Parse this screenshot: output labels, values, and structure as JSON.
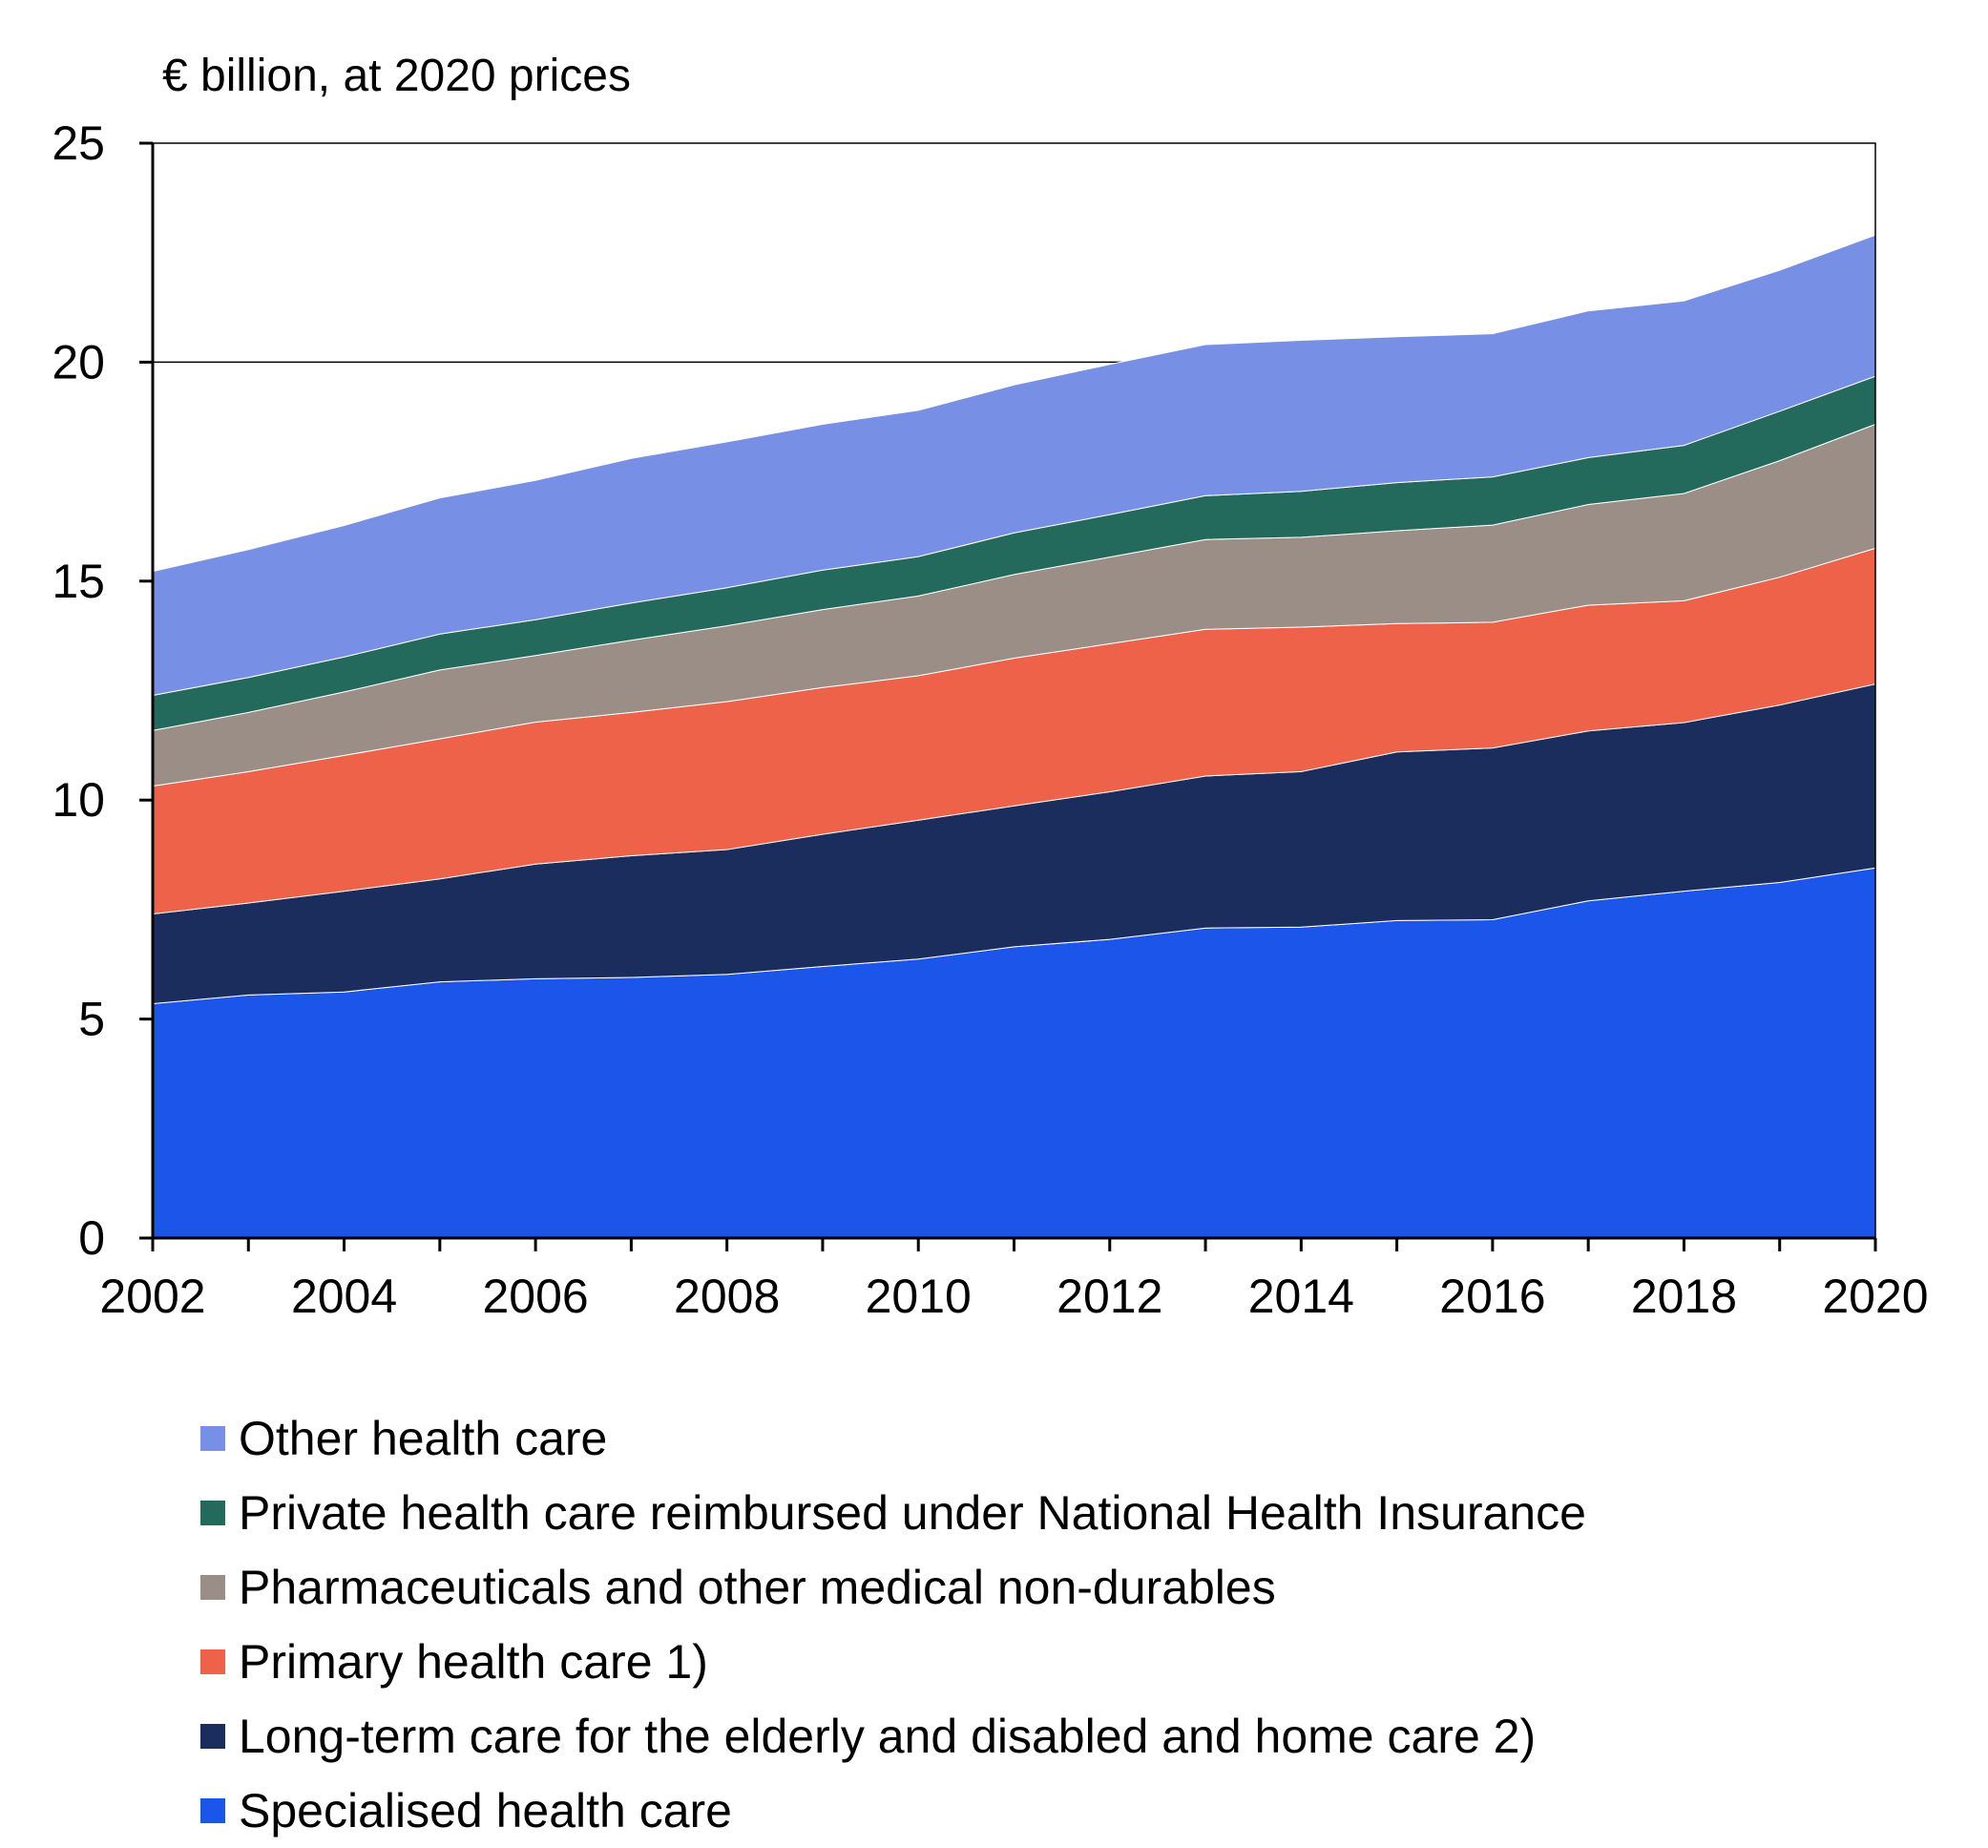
{
  "chart_data": {
    "type": "area",
    "stacked": true,
    "title": "",
    "ylabel": "€ billion, at 2020 prices",
    "xlabel": "",
    "ylim": [
      0,
      25
    ],
    "yticks": [
      0,
      5,
      10,
      15,
      20,
      25
    ],
    "xticks": [
      2002,
      2004,
      2006,
      2008,
      2010,
      2012,
      2014,
      2016,
      2018,
      2020
    ],
    "grid": "horizontal line at 20",
    "legend_position": "bottom",
    "x": [
      2002,
      2003,
      2004,
      2005,
      2006,
      2007,
      2008,
      2009,
      2010,
      2011,
      2012,
      2013,
      2014,
      2015,
      2016,
      2017,
      2018,
      2019,
      2020
    ],
    "series": [
      {
        "name": "Specialised health care",
        "color": "#1b55ea",
        "values": [
          5.35,
          5.55,
          5.62,
          5.85,
          5.92,
          5.95,
          6.02,
          6.2,
          6.37,
          6.65,
          6.82,
          7.08,
          7.1,
          7.25,
          7.27,
          7.7,
          7.92,
          8.12,
          8.45
        ]
      },
      {
        "name": "Long-term care for the elderly and disabled and home care 2)",
        "color": "#1b2d5c",
        "values": [
          2.05,
          2.1,
          2.3,
          2.35,
          2.62,
          2.78,
          2.85,
          3.02,
          3.17,
          3.22,
          3.37,
          3.47,
          3.55,
          3.85,
          3.92,
          3.88,
          3.85,
          4.05,
          4.2
        ]
      },
      {
        "name": "Primary health care 1)",
        "color": "#ef624a",
        "values": [
          2.92,
          3.0,
          3.1,
          3.2,
          3.24,
          3.27,
          3.38,
          3.35,
          3.3,
          3.37,
          3.38,
          3.35,
          3.3,
          2.93,
          2.87,
          2.87,
          2.78,
          2.92,
          3.1
        ]
      },
      {
        "name": "Pharmaceuticals and other medical non-durables",
        "color": "#9b8e86",
        "values": [
          1.27,
          1.35,
          1.45,
          1.57,
          1.52,
          1.65,
          1.73,
          1.78,
          1.82,
          1.91,
          1.98,
          2.05,
          2.05,
          2.12,
          2.22,
          2.3,
          2.45,
          2.66,
          2.83
        ]
      },
      {
        "name": "Private health care reimbursed under National Health Insurance",
        "color": "#236a5c",
        "values": [
          0.8,
          0.8,
          0.8,
          0.82,
          0.82,
          0.85,
          0.87,
          0.9,
          0.9,
          0.95,
          0.97,
          1.0,
          1.05,
          1.1,
          1.1,
          1.07,
          1.1,
          1.13,
          1.1
        ]
      },
      {
        "name": "Other health care",
        "color": "#7790e6",
        "values": [
          2.83,
          2.92,
          3.0,
          3.11,
          3.18,
          3.3,
          3.33,
          3.33,
          3.34,
          3.38,
          3.43,
          3.45,
          3.45,
          3.33,
          3.27,
          3.35,
          3.3,
          3.22,
          3.22
        ]
      }
    ]
  },
  "legend_order": [
    5,
    4,
    3,
    2,
    1,
    0
  ]
}
